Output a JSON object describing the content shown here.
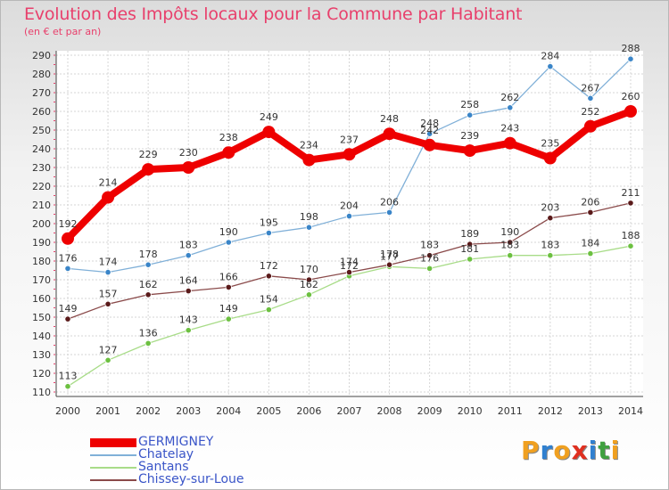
{
  "title": "Evolution des Impôts locaux pour la Commune par Habitant",
  "subtitle": "(en € et par an)",
  "logo": {
    "text": "Proxiti",
    "colors": [
      "#f0a020",
      "#3080d0",
      "#f0a020",
      "#e03020",
      "#3080d0",
      "#40a040",
      "#f0a020"
    ]
  },
  "chart_data": {
    "type": "line",
    "title": "Evolution des Impôts locaux pour la Commune par Habitant",
    "subtitle": "(en € et par an)",
    "x": [
      "2000",
      "2001",
      "2002",
      "2003",
      "2004",
      "2005",
      "2006",
      "2007",
      "2008",
      "2009",
      "2010",
      "2011",
      "2012",
      "2013",
      "2014"
    ],
    "ylim": [
      110,
      290
    ],
    "yticks": [
      110,
      120,
      130,
      140,
      150,
      160,
      170,
      180,
      190,
      200,
      210,
      220,
      230,
      240,
      250,
      260,
      270,
      280,
      290
    ],
    "grid": true,
    "legend_position": "bottom-left",
    "series": [
      {
        "name": "GERMIGNEY",
        "color": "#ee0000",
        "marker": "#ee0000",
        "emphasis": true,
        "values": [
          192,
          214,
          229,
          230,
          238,
          249,
          234,
          237,
          248,
          242,
          239,
          243,
          235,
          252,
          260
        ],
        "labels": [
          "192",
          "214",
          "229",
          "230",
          "238",
          "249",
          "234",
          "237",
          "248",
          "",
          "239",
          "243",
          "235",
          "252",
          "260"
        ]
      },
      {
        "name": "Chatelay",
        "color": "#80b0d8",
        "marker": "#3a85c8",
        "emphasis": false,
        "values": [
          176,
          174,
          178,
          183,
          190,
          195,
          198,
          204,
          206,
          248,
          258,
          262,
          284,
          267,
          288
        ],
        "labels": [
          "176",
          "174",
          "178",
          "183",
          "190",
          "195",
          "198",
          "204",
          "206",
          "248",
          "258",
          "262",
          "284",
          "267",
          "288"
        ]
      },
      {
        "name": "Santans",
        "color": "#a8dc88",
        "marker": "#6cc040",
        "emphasis": false,
        "values": [
          113,
          127,
          136,
          143,
          149,
          154,
          162,
          172,
          177,
          176,
          181,
          183,
          183,
          184,
          188
        ],
        "labels": [
          "113",
          "127",
          "136",
          "143",
          "149",
          "154",
          "162",
          "172",
          "177",
          "176",
          "181",
          "183",
          "183",
          "184",
          "188"
        ]
      },
      {
        "name": "Chissey-sur-Loue",
        "color": "#8a4a4a",
        "marker": "#5a1a1a",
        "emphasis": false,
        "values": [
          149,
          157,
          162,
          164,
          166,
          172,
          170,
          174,
          178,
          183,
          189,
          190,
          203,
          206,
          211
        ],
        "labels": [
          "149",
          "157",
          "162",
          "164",
          "166",
          "172",
          "170",
          "174",
          "178",
          "183",
          "189",
          "190",
          "203",
          "206",
          "211"
        ]
      }
    ],
    "extra_labels": [
      {
        "series": 0,
        "index": 9,
        "text": "242"
      }
    ]
  }
}
